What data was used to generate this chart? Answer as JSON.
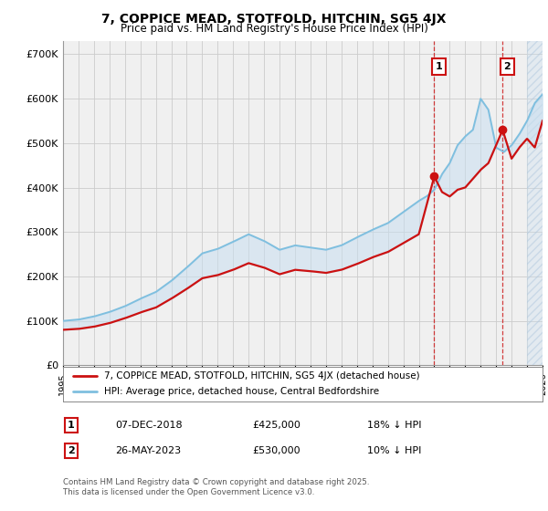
{
  "title": "7, COPPICE MEAD, STOTFOLD, HITCHIN, SG5 4JX",
  "subtitle": "Price paid vs. HM Land Registry's House Price Index (HPI)",
  "ylim": [
    0,
    730000
  ],
  "yticks": [
    0,
    100000,
    200000,
    300000,
    400000,
    500000,
    600000,
    700000
  ],
  "ytick_labels": [
    "£0",
    "£100K",
    "£200K",
    "£300K",
    "£400K",
    "£500K",
    "£600K",
    "£700K"
  ],
  "xlim_start": 1995.0,
  "xlim_end": 2026.0,
  "hpi_color": "#7fbfdf",
  "price_color": "#cc1111",
  "trans1_x": 2019.0,
  "trans1_y": 425000,
  "trans2_x": 2023.42,
  "trans2_y": 530000,
  "legend_line1": "7, COPPICE MEAD, STOTFOLD, HITCHIN, SG5 4JX (detached house)",
  "legend_line2": "HPI: Average price, detached house, Central Bedfordshire",
  "table_row1_num": "1",
  "table_row1_date": "07-DEC-2018",
  "table_row1_price": "£425,000",
  "table_row1_hpi": "18% ↓ HPI",
  "table_row2_num": "2",
  "table_row2_date": "26-MAY-2023",
  "table_row2_price": "£530,000",
  "table_row2_hpi": "10% ↓ HPI",
  "footer": "Contains HM Land Registry data © Crown copyright and database right 2025.\nThis data is licensed under the Open Government Licence v3.0.",
  "background_color": "#ffffff",
  "plot_bg_color": "#f0f0f0",
  "grid_color": "#cccccc",
  "shade_color": "#c8dff0",
  "hatch_color": "#c8dff0",
  "future_start": 2025.0
}
